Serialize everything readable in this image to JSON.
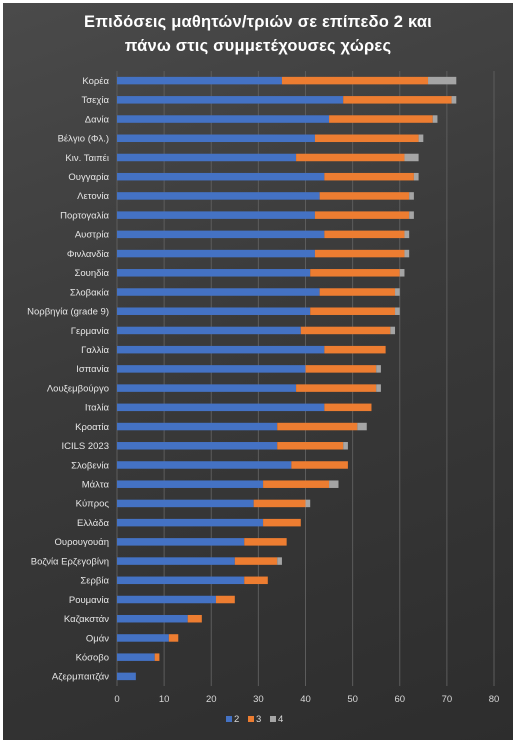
{
  "chart_data": {
    "type": "bar",
    "orientation": "horizontal",
    "stacked": true,
    "title_lines": [
      "Επιδόσεις μαθητών/τριών σε επίπεδο 2 και",
      "πάνω στις συμμετέχουσες χώρες"
    ],
    "categories": [
      "Κορέα",
      "Τσεχία",
      "Δανία",
      "Βέλγιο (Φλ.)",
      "Κιν. Ταιπέι",
      "Ουγγαρία",
      "Λετονία",
      "Πορτογαλία",
      "Αυστρία",
      "Φινλανδία",
      "Σουηδία",
      "Σλοβακία",
      "Νορβηγία (grade 9)",
      "Γερμανία",
      "Γαλλία",
      "Ισπανία",
      "Λουξεμβούργο",
      "Ιταλία",
      "Κροατία",
      "ICILS 2023",
      "Σλοβενία",
      "Μάλτα",
      "Κύπρος",
      "Ελλάδα",
      "Ουρουγουάη",
      "Βοζνία Ερζεγοβίνη",
      "Σερβία",
      "Ρουμανία",
      "Καζακστάν",
      "Ομάν",
      "Κόσοβο",
      "Αζερμπαιτζάν"
    ],
    "series": [
      {
        "name": "2",
        "color": "#4472c4",
        "values": [
          35,
          48,
          45,
          42,
          38,
          44,
          43,
          42,
          44,
          42,
          41,
          43,
          41,
          39,
          44,
          40,
          38,
          44,
          34,
          34,
          37,
          31,
          29,
          31,
          27,
          25,
          27,
          21,
          15,
          11,
          8,
          4
        ]
      },
      {
        "name": "3",
        "color": "#ed7d31",
        "values": [
          31,
          23,
          22,
          22,
          23,
          19,
          19,
          20,
          17,
          19,
          19,
          16,
          18,
          19,
          13,
          15,
          17,
          10,
          17,
          14,
          12,
          14,
          11,
          8,
          9,
          9,
          5,
          4,
          3,
          2,
          1,
          0
        ]
      },
      {
        "name": "4",
        "color": "#a5a5a5",
        "values": [
          6,
          1,
          1,
          1,
          3,
          1,
          1,
          1,
          1,
          1,
          1,
          1,
          1,
          1,
          0,
          1,
          1,
          0,
          2,
          1,
          0,
          2,
          1,
          0,
          0,
          1,
          0,
          0,
          0,
          0,
          0,
          0
        ]
      }
    ],
    "xlim": [
      0,
      80
    ],
    "xticks": [
      0,
      10,
      20,
      30,
      40,
      50,
      60,
      70,
      80
    ],
    "grid": "vertical",
    "legend_position": "bottom"
  }
}
